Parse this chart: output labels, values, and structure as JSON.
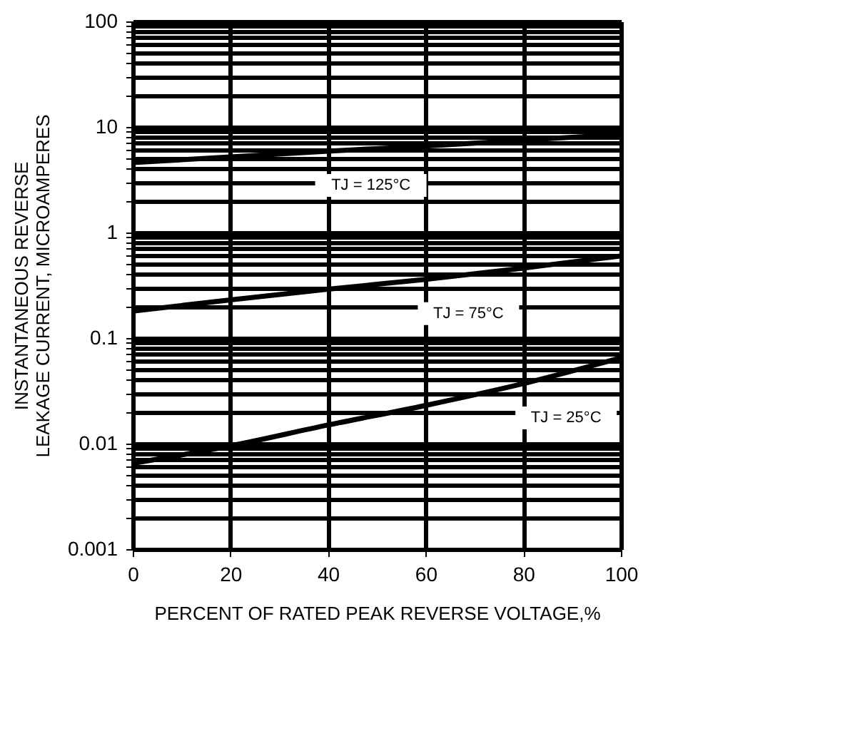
{
  "chart_data": {
    "type": "line",
    "xlabel": "PERCENT OF RATED PEAK REVERSE VOLTAGE,%",
    "ylabel": "INSTANTANEOUS REVERSE LEAKAGE CURRENT, MICROAMPERES",
    "x": [
      0,
      20,
      40,
      60,
      80,
      100
    ],
    "series": [
      {
        "name": "TJ = 125°C",
        "color": "#000000",
        "values": [
          4.6,
          5.2,
          5.9,
          6.6,
          7.5,
          8.5
        ]
      },
      {
        "name": "TJ = 75°C",
        "color": "#000000",
        "values": [
          0.18,
          0.23,
          0.29,
          0.36,
          0.46,
          0.6
        ]
      },
      {
        "name": "TJ = 25°C",
        "color": "#000000",
        "values": [
          0.0065,
          0.0095,
          0.015,
          0.023,
          0.037,
          0.065
        ]
      }
    ],
    "log": "y",
    "xlim": [
      0,
      100
    ],
    "ylim": [
      0.001,
      100
    ],
    "xticks": [
      0,
      20,
      40,
      60,
      80,
      100
    ],
    "yticks": [
      0.001,
      {
        "value": 0.002,
        "label": null
      },
      {
        "value": 0.003,
        "label": null
      },
      {
        "value": 0.004,
        "label": null
      },
      {
        "value": 0.005,
        "label": null
      },
      {
        "value": 0.006,
        "label": null
      },
      {
        "value": 0.007,
        "label": null
      },
      {
        "value": 0.008,
        "label": null
      },
      {
        "value": 0.009,
        "label": null
      },
      0.01,
      {
        "value": 0.02,
        "label": null
      },
      {
        "value": 0.03,
        "label": null
      },
      {
        "value": 0.04,
        "label": null
      },
      {
        "value": 0.05,
        "label": null
      },
      {
        "value": 0.06,
        "label": null
      },
      {
        "value": 0.07,
        "label": null
      },
      {
        "value": 0.08,
        "label": null
      },
      {
        "value": 0.09,
        "label": null
      },
      0.1,
      {
        "value": 0.2,
        "label": null
      },
      {
        "value": 0.3,
        "label": null
      },
      {
        "value": 0.4,
        "label": null
      },
      {
        "value": 0.5,
        "label": null
      },
      {
        "value": 0.6,
        "label": null
      },
      {
        "value": 0.7,
        "label": null
      },
      {
        "value": 0.8,
        "label": null
      },
      {
        "value": 0.9,
        "label": null
      },
      1,
      {
        "value": 2,
        "label": null
      },
      {
        "value": 3,
        "label": null
      },
      {
        "value": 4,
        "label": null
      },
      {
        "value": 5,
        "label": null
      },
      {
        "value": 6,
        "label": null
      },
      {
        "value": 7,
        "label": null
      },
      {
        "value": 8,
        "label": null
      },
      {
        "value": 9,
        "label": null
      },
      10,
      {
        "value": 20,
        "label": null
      },
      {
        "value": 30,
        "label": null
      },
      {
        "value": 40,
        "label": null
      },
      {
        "value": 50,
        "label": null
      },
      {
        "value": 60,
        "label": null
      },
      {
        "value": 70,
        "label": null
      },
      {
        "value": 80,
        "label": null
      },
      {
        "value": 90,
        "label": null
      },
      100
    ],
    "grid": true
  }
}
